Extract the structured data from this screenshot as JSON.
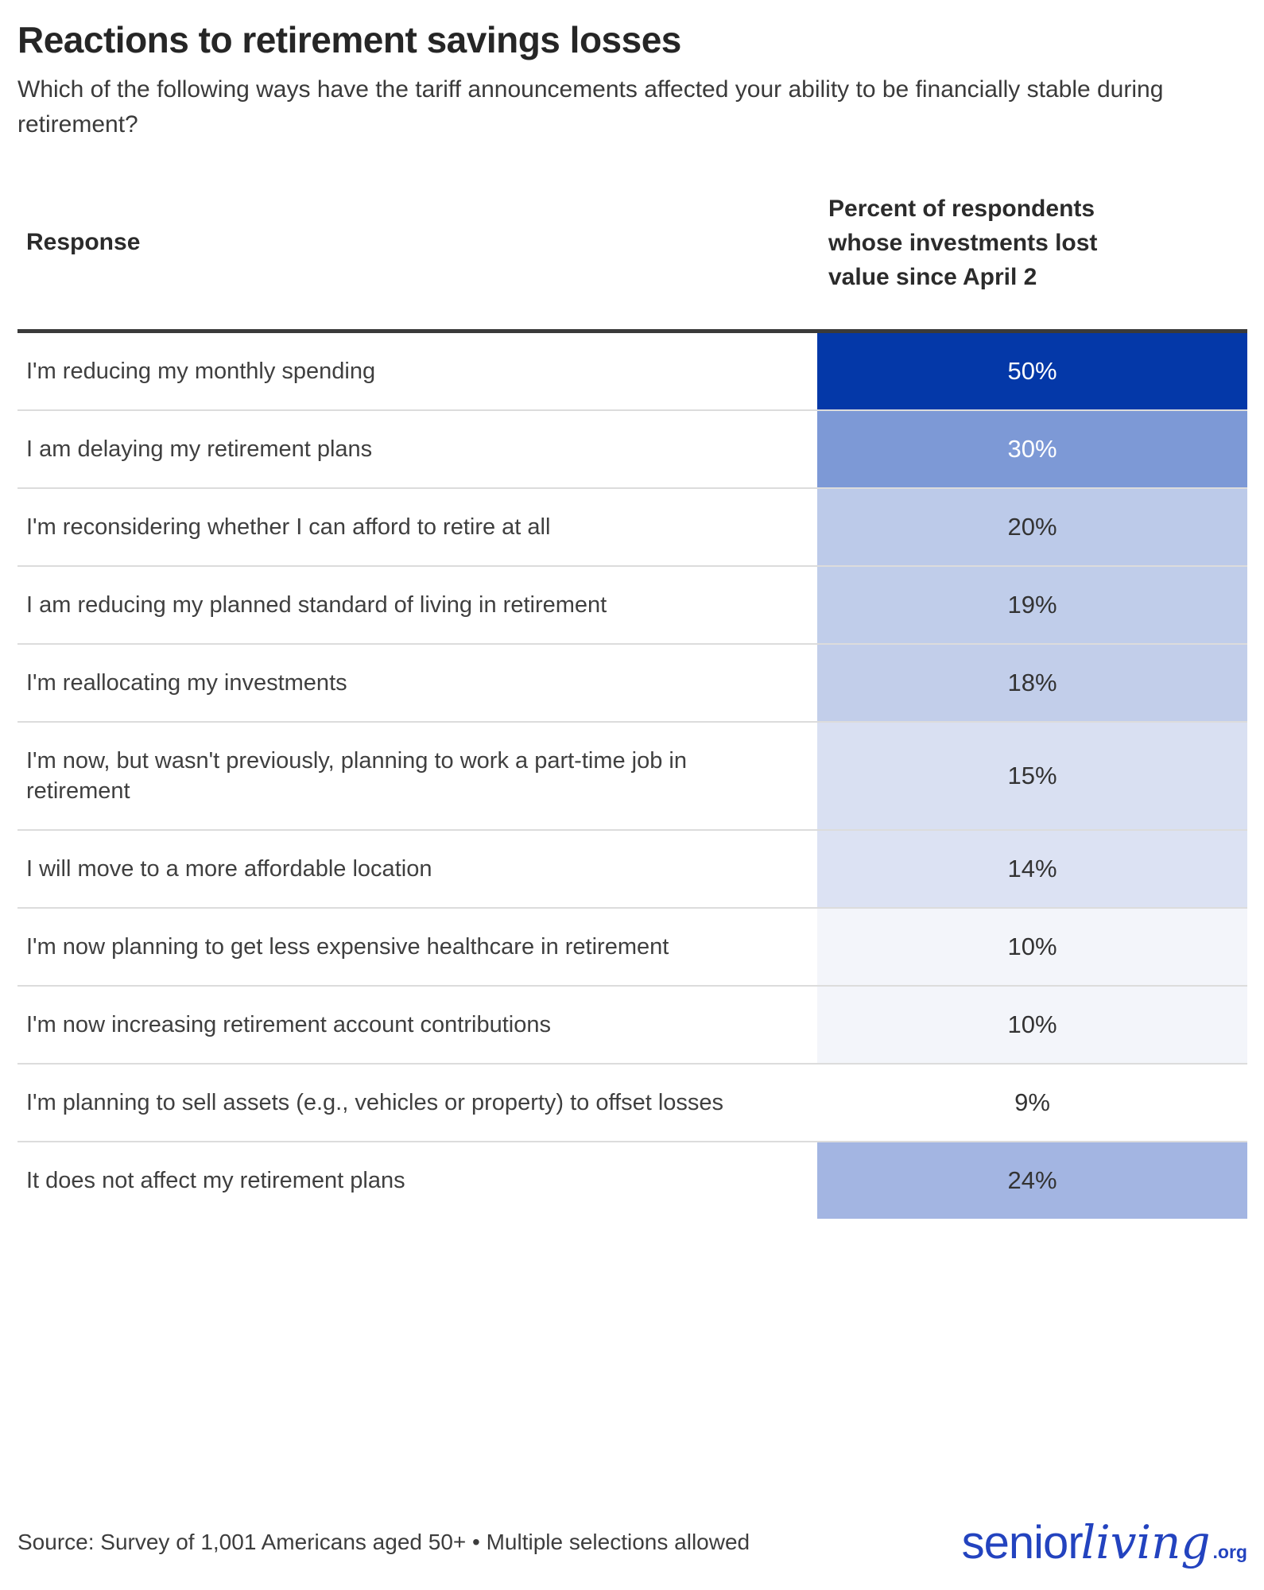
{
  "header": {
    "title": "Reactions to retirement savings losses",
    "subtitle": "Which of the following ways have the tariff announcements affected your ability to be financially stable during retirement?"
  },
  "table": {
    "col1_header": "Response",
    "col2_header": "Percent of respondents whose investments lost value since April 2",
    "rows": [
      {
        "label": "I'm reducing my monthly spending",
        "value": "50%",
        "bg": "#0438a8",
        "fg": "#ffffff"
      },
      {
        "label": "I am delaying my retirement plans",
        "value": "30%",
        "bg": "#7d99d6",
        "fg": "#ffffff"
      },
      {
        "label": "I'm reconsidering whether I can afford to retire at all",
        "value": "20%",
        "bg": "#bccae9",
        "fg": "#333333"
      },
      {
        "label": "I am reducing my planned standard of living in retirement",
        "value": "19%",
        "bg": "#c0cdea",
        "fg": "#333333"
      },
      {
        "label": "I'm reallocating my investments",
        "value": "18%",
        "bg": "#c2ceea",
        "fg": "#333333"
      },
      {
        "label": "I'm now, but wasn't previously, planning to work a part-time job in retirement",
        "value": "15%",
        "bg": "#d9e0f2",
        "fg": "#333333"
      },
      {
        "label": "I will move to a more affordable location",
        "value": "14%",
        "bg": "#dce2f3",
        "fg": "#333333"
      },
      {
        "label": "I'm now planning to get less expensive healthcare in retirement",
        "value": "10%",
        "bg": "#f3f5fa",
        "fg": "#333333"
      },
      {
        "label": "I'm now increasing retirement account contributions",
        "value": "10%",
        "bg": "#f3f5fa",
        "fg": "#333333"
      },
      {
        "label": "I'm planning to sell assets (e.g., vehicles or property) to offset losses",
        "value": "9%",
        "bg": "#ffffff",
        "fg": "#333333"
      },
      {
        "label": "It does not affect my retirement plans",
        "value": "24%",
        "bg": "#a3b5e2",
        "fg": "#333333"
      }
    ]
  },
  "footer": {
    "source": "Source: Survey of 1,001 Americans aged 50+ • Multiple selections allowed",
    "logo": {
      "senior": "senior",
      "living": "living",
      "org": ".org",
      "color": "#2343bf"
    }
  },
  "colors": {
    "heatmap_max": "#0438a8",
    "heatmap_min": "#ffffff",
    "header_rule": "#3a3a3a",
    "row_divider": "#dcdcdc"
  },
  "chart_data": {
    "type": "table",
    "title": "Reactions to retirement savings losses",
    "subtitle": "Which of the following ways have the tariff announcements affected your ability to be financially stable during retirement?",
    "columns": [
      "Response",
      "Percent of respondents whose investments lost value since April 2"
    ],
    "categories": [
      "I'm reducing my monthly spending",
      "I am delaying my retirement plans",
      "I'm reconsidering whether I can afford to retire at all",
      "I am reducing my planned standard of living in retirement",
      "I'm reallocating my investments",
      "I'm now, but wasn't previously, planning to work a part-time job in retirement",
      "I will move to a more affordable location",
      "I'm now planning to get less expensive healthcare in retirement",
      "I'm now increasing retirement account contributions",
      "I'm planning to sell assets (e.g., vehicles or property) to offset losses",
      "It does not affect my retirement plans"
    ],
    "values": [
      50,
      30,
      20,
      19,
      18,
      15,
      14,
      10,
      10,
      9,
      24
    ],
    "unit": "%",
    "value_encoding": "heatmap shading of value column, darker blue = higher percent",
    "legend": "none",
    "source_note": "Source: Survey of 1,001 Americans aged 50+ • Multiple selections allowed"
  }
}
